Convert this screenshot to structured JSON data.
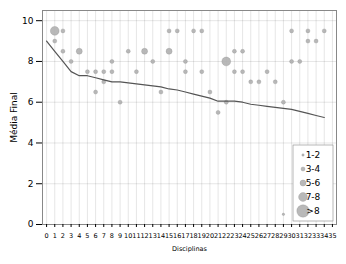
{
  "chart_data": {
    "type": "scatter",
    "xlabel": "Disciplinas",
    "ylabel": "Média Final",
    "xlim": [
      -0.5,
      35.5
    ],
    "ylim": [
      0,
      10.5
    ],
    "xticks": [
      0,
      1,
      2,
      3,
      4,
      5,
      6,
      7,
      8,
      9,
      10,
      11,
      12,
      13,
      14,
      15,
      16,
      17,
      18,
      19,
      20,
      21,
      22,
      23,
      24,
      25,
      26,
      27,
      28,
      29,
      30,
      31,
      32,
      33,
      34,
      35
    ],
    "yticks": [
      0,
      2,
      4,
      6,
      8,
      10
    ],
    "grid": true,
    "legend": "lower right",
    "size_classes": [
      "1-2",
      "3-4",
      "5-6",
      "7-8",
      ">8"
    ],
    "series": [
      {
        "type": "scatter",
        "color": "#b0b0b0",
        "x": [
          1,
          1,
          2,
          2,
          3,
          4,
          5,
          6,
          6,
          7,
          7,
          8,
          8,
          9,
          10,
          11,
          12,
          13,
          14,
          15,
          15,
          16,
          17,
          17,
          18,
          19,
          19,
          20,
          21,
          22,
          22,
          23,
          23,
          24,
          24,
          25,
          26,
          27,
          28,
          29,
          29,
          30,
          30,
          31,
          32,
          32,
          33,
          34
        ],
        "values": [
          9.5,
          9.0,
          9.5,
          8.5,
          8.0,
          8.5,
          7.5,
          7.5,
          6.5,
          7.5,
          7.0,
          8.0,
          7.5,
          6.0,
          8.5,
          7.5,
          8.5,
          8.0,
          6.5,
          9.5,
          8.5,
          9.5,
          8.0,
          7.5,
          9.5,
          9.5,
          7.5,
          6.5,
          5.5,
          8.0,
          6.0,
          8.5,
          7.5,
          8.5,
          7.5,
          7.0,
          7.0,
          7.5,
          7.0,
          6.0,
          0.5,
          9.5,
          8.0,
          8.0,
          9.5,
          9.0,
          9.0,
          9.5
        ],
        "sizes": [
          "7-8",
          "3-4",
          "3-4",
          "3-4",
          "3-4",
          "5-6",
          "3-4",
          "3-4",
          "3-4",
          "3-4",
          "3-4",
          "3-4",
          "3-4",
          "3-4",
          "3-4",
          "3-4",
          "5-6",
          "3-4",
          "3-4",
          "3-4",
          "5-6",
          "3-4",
          "3-4",
          "3-4",
          "3-4",
          "3-4",
          "3-4",
          "3-4",
          "3-4",
          "7-8",
          "3-4",
          "3-4",
          "3-4",
          "3-4",
          "3-4",
          "3-4",
          "3-4",
          "3-4",
          "3-4",
          "3-4",
          "1-2",
          "3-4",
          "3-4",
          "3-4",
          "3-4",
          "3-4",
          "3-4",
          "3-4"
        ]
      },
      {
        "type": "line",
        "color": "#555555",
        "x": [
          0,
          1,
          2,
          3,
          4,
          5,
          6,
          7,
          8,
          9,
          10,
          11,
          12,
          13,
          14,
          15,
          16,
          17,
          18,
          19,
          20,
          21,
          22,
          23,
          24,
          25,
          26,
          27,
          28,
          29,
          30,
          31,
          32,
          33,
          34
        ],
        "values": [
          9.0,
          8.5,
          8.0,
          7.5,
          7.3,
          7.3,
          7.2,
          7.1,
          7.0,
          7.0,
          6.95,
          6.9,
          6.85,
          6.8,
          6.75,
          6.65,
          6.6,
          6.5,
          6.4,
          6.3,
          6.2,
          6.05,
          6.05,
          6.05,
          6.0,
          5.9,
          5.85,
          5.8,
          5.75,
          5.7,
          5.65,
          5.55,
          5.45,
          5.35,
          5.25
        ]
      }
    ]
  }
}
